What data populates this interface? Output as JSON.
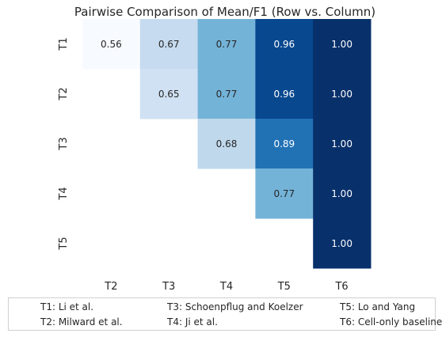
{
  "chart_data": {
    "type": "heatmap",
    "title": "Pairwise Comparison of Mean/F1 (Row vs. Column)",
    "rows": [
      "T1",
      "T2",
      "T3",
      "T4",
      "T5"
    ],
    "columns": [
      "T2",
      "T3",
      "T4",
      "T5",
      "T6"
    ],
    "values": [
      [
        0.56,
        0.67,
        0.77,
        0.96,
        1.0
      ],
      [
        null,
        0.65,
        0.77,
        0.96,
        1.0
      ],
      [
        null,
        null,
        0.68,
        0.89,
        1.0
      ],
      [
        null,
        null,
        null,
        0.77,
        1.0
      ],
      [
        null,
        null,
        null,
        null,
        1.0
      ]
    ],
    "value_format": "2 decimals",
    "colormap": "Blues",
    "color_range": [
      0.56,
      1.0
    ],
    "colors": {
      "low": "#f7fbff",
      "high": "#08306b",
      "text_dark": "#262626",
      "text_light": "#ffffff"
    }
  },
  "legend": {
    "items": [
      {
        "text": "T1: Li et al."
      },
      {
        "text": "T2: Milward et al."
      },
      {
        "text": "T3: Schoenpflug and Koelzer"
      },
      {
        "text": "T4: Ji et al."
      },
      {
        "text": "T5: Lo and Yang"
      },
      {
        "text": "T6: Cell-only baseline"
      }
    ]
  }
}
